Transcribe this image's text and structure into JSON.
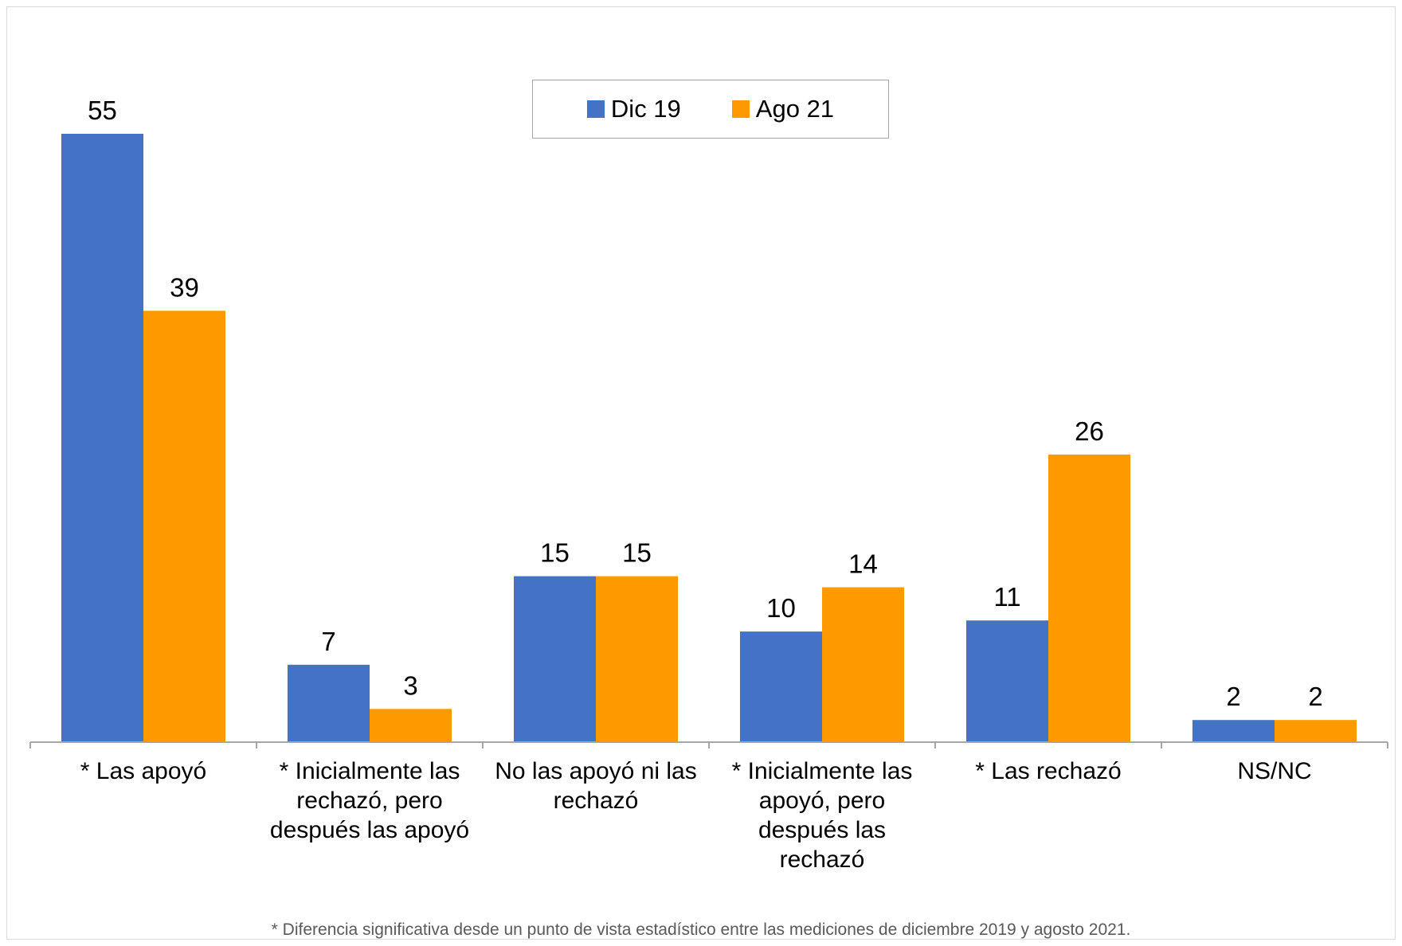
{
  "chart_data": {
    "type": "bar",
    "categories": [
      "* Las apoyó",
      "* Inicialmente las rechazó, pero después las apoyó",
      "No las apoyó ni las rechazó",
      "* Inicialmente las apoyó, pero después las rechazó",
      "* Las rechazó",
      "NS/NC"
    ],
    "category_lines": [
      [
        "* Las apoyó"
      ],
      [
        "* Inicialmente las",
        "rechazó, pero",
        "después las apoyó"
      ],
      [
        "No las apoyó ni las",
        "rechazó"
      ],
      [
        "* Inicialmente las",
        "apoyó, pero",
        "después las",
        "rechazó"
      ],
      [
        "* Las rechazó"
      ],
      [
        "NS/NC"
      ]
    ],
    "series": [
      {
        "name": "Dic 19",
        "color": "#4472c4",
        "values": [
          55,
          7,
          15,
          10,
          11,
          2
        ]
      },
      {
        "name": "Ago 21",
        "color": "#ff9900",
        "values": [
          39,
          3,
          15,
          14,
          26,
          2
        ]
      }
    ],
    "data_labels": true,
    "ylim": [
      0,
      55
    ],
    "grid": false,
    "legend_position": "top-center"
  },
  "footnote": "* Diferencia significativa desde un punto de vista estadístico entre las mediciones de diciembre 2019 y agosto 2021."
}
